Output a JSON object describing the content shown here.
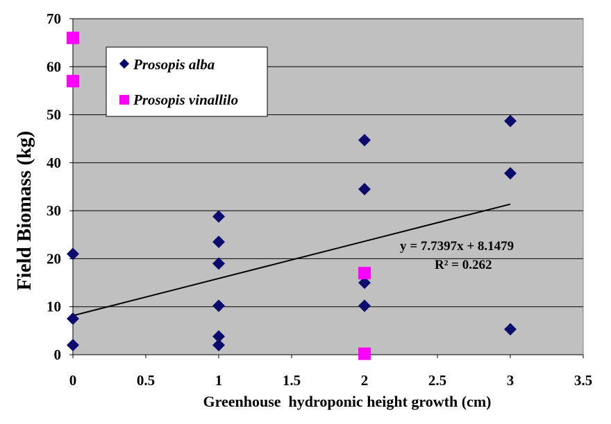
{
  "chart_data": {
    "type": "scatter",
    "title": "",
    "xlabel": "Greenhouse  hydroponic height growth (cm)",
    "ylabel": "Field Biomass (kg)",
    "xlim": [
      0,
      3.5
    ],
    "ylim": [
      0,
      70
    ],
    "x_ticks": [
      "0",
      "0.5",
      "1",
      "1.5",
      "2",
      "2.5",
      "3",
      "3.5"
    ],
    "y_ticks": [
      "0",
      "10",
      "20",
      "30",
      "40",
      "50",
      "60",
      "70"
    ],
    "grid": "horizontal",
    "legend_position": "top-left",
    "series": [
      {
        "name": "Prosopis alba",
        "marker": "diamond",
        "color": "#0b0b6e",
        "points": [
          {
            "x": 0,
            "y": 21
          },
          {
            "x": 0,
            "y": 7.5
          },
          {
            "x": 0,
            "y": 2
          },
          {
            "x": 1,
            "y": 28.8
          },
          {
            "x": 1,
            "y": 23.5
          },
          {
            "x": 1,
            "y": 19
          },
          {
            "x": 1,
            "y": 10.2
          },
          {
            "x": 1,
            "y": 3.8
          },
          {
            "x": 1,
            "y": 2
          },
          {
            "x": 2,
            "y": 44.7
          },
          {
            "x": 2,
            "y": 34.5
          },
          {
            "x": 2,
            "y": 15
          },
          {
            "x": 2,
            "y": 10.2
          },
          {
            "x": 3,
            "y": 48.7
          },
          {
            "x": 3,
            "y": 37.8
          },
          {
            "x": 3,
            "y": 5.3
          }
        ]
      },
      {
        "name": "Prosopis vinallilo",
        "marker": "square",
        "color": "#ff00ff",
        "points": [
          {
            "x": 0,
            "y": 66
          },
          {
            "x": 0,
            "y": 57
          },
          {
            "x": 2,
            "y": 17
          },
          {
            "x": 2,
            "y": 0.2
          }
        ]
      }
    ],
    "trendline": {
      "slope": 7.7397,
      "intercept": 8.1479,
      "x_range": [
        0,
        3
      ],
      "color": "#000000",
      "equation_label": "y = 7.7397x + 8.1479",
      "r2_label": "R² = 0.262"
    },
    "colors": {
      "plot_background": "#c0c0c0",
      "gridline": "#000000"
    }
  }
}
